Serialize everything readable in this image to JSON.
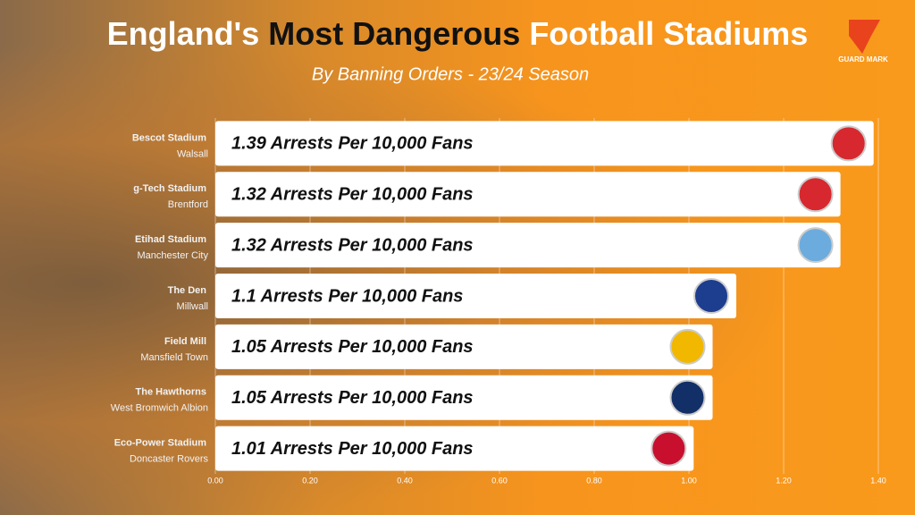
{
  "chart_data": {
    "type": "bar",
    "orientation": "horizontal",
    "title": [
      "England's",
      "Most Dangerous",
      "Football Stadiums"
    ],
    "title_colors": [
      "#ffffff",
      "#111111",
      "#ffffff"
    ],
    "subtitle": "By Banning Orders - 23/24 Season",
    "logo": "GUARD MARK",
    "categories": [
      "Bescot Stadium",
      "g-Tech Stadium",
      "Etihad Stadium",
      "The Den",
      "Field Mill",
      "The Hawthorns",
      "Eco-Power Stadium"
    ],
    "clubs": [
      "Walsall",
      "Brentford",
      "Manchester City",
      "Millwall",
      "Mansfield Town",
      "West Bromwich Albion",
      "Doncaster Rovers"
    ],
    "values": [
      1.39,
      1.32,
      1.32,
      1.1,
      1.05,
      1.05,
      1.01
    ],
    "value_labels": [
      "1.39 Arrests Per 10,000 Fans",
      "1.32 Arrests Per 10,000 Fans",
      "1.32 Arrests Per 10,000 Fans",
      "1.1 Arrests Per 10,000 Fans",
      "1.05 Arrests Per 10,000 Fans",
      "1.05 Arrests Per 10,000 Fans",
      "1.01 Arrests Per 10,000 Fans"
    ],
    "color": "#ffffff",
    "xlim": [
      0,
      1.4
    ],
    "xticks": [
      {
        "value": 0,
        "label": "0.00"
      },
      {
        "value": 0.2,
        "label": "0.20"
      },
      {
        "value": 0.4,
        "label": "0.40"
      },
      {
        "value": 0.6,
        "label": "0.60"
      },
      {
        "value": 0.8,
        "label": "0.80"
      },
      {
        "value": 1,
        "label": "1.00"
      },
      {
        "value": 1.2,
        "label": "1.20"
      },
      {
        "value": 1.4,
        "label": "1.40"
      }
    ],
    "grid": true
  }
}
